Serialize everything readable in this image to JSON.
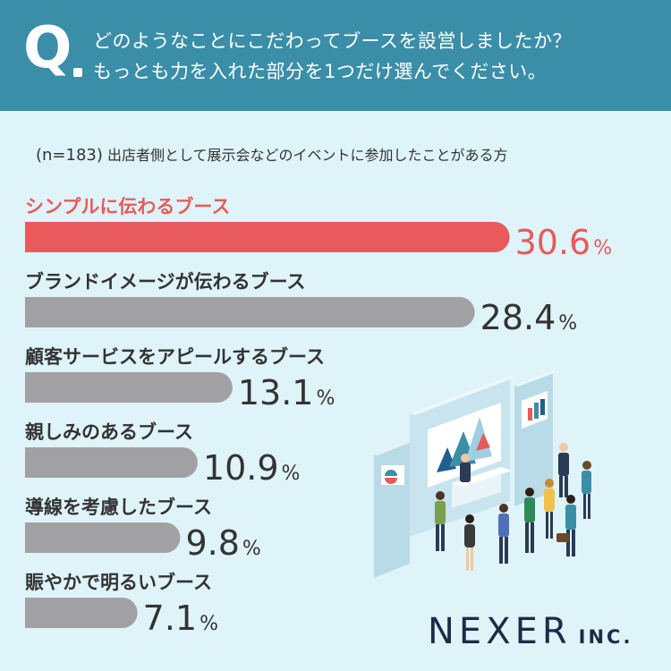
{
  "header": {
    "q_mark": "Q",
    "question_line1": "どのようなことにこだわってブースを設営しましたか？",
    "question_line2": "もっとも力を入れた部分を1つだけ選んでください。"
  },
  "subtitle": {
    "n": "(n=183)",
    "text": "出店者側として展示会などのイベントに参加したことがある方"
  },
  "colors": {
    "highlight": "#e85a5c",
    "bar": "#a1a1a4",
    "value_text": "#333333",
    "header_bg": "#3b8ea8",
    "background": "#dff4f9"
  },
  "chart_data": {
    "type": "bar",
    "orientation": "horizontal",
    "unit": "%",
    "categories": [
      "シンプルに伝わるブース",
      "ブランドイメージが伝わるブース",
      "顧客サービスをアピールするブース",
      "親しみのあるブース",
      "導線を考慮したブース",
      "賑やかで明るいブース"
    ],
    "values": [
      30.6,
      28.4,
      13.1,
      10.9,
      9.8,
      7.1
    ],
    "highlight_index": 0
  },
  "illustration": {
    "icon": "exhibition-booth-illustration"
  },
  "logo": {
    "main": "NEXER",
    "suffix": "INC."
  }
}
